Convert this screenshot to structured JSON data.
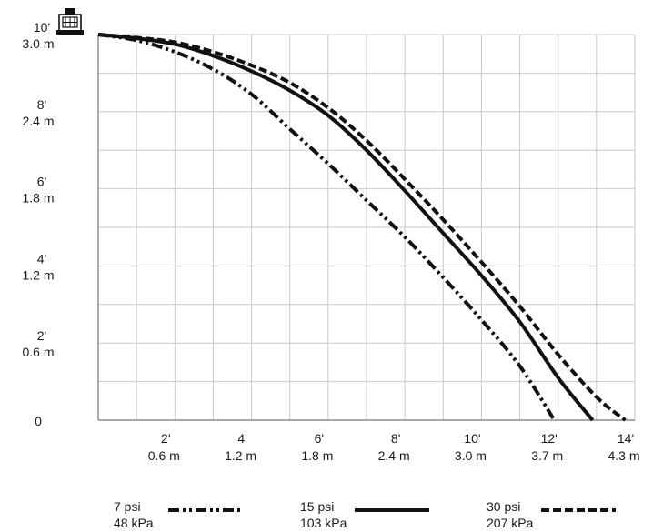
{
  "chart_data": {
    "type": "line",
    "xlim": [
      0,
      14
    ],
    "ylim": [
      0,
      10
    ],
    "grid": true,
    "x_ticks": [
      {
        "value": 2,
        "ft": "2'",
        "m": "0.6 m"
      },
      {
        "value": 4,
        "ft": "4'",
        "m": "1.2 m"
      },
      {
        "value": 6,
        "ft": "6'",
        "m": "1.8 m"
      },
      {
        "value": 8,
        "ft": "8'",
        "m": "2.4 m"
      },
      {
        "value": 10,
        "ft": "10'",
        "m": "3.0 m"
      },
      {
        "value": 12,
        "ft": "12'",
        "m": "3.7 m"
      },
      {
        "value": 14,
        "ft": "14'",
        "m": "4.3 m"
      }
    ],
    "y_ticks": [
      {
        "value": 10,
        "ft": "10'",
        "m": "3.0 m"
      },
      {
        "value": 8,
        "ft": "8'",
        "m": "2.4 m"
      },
      {
        "value": 6,
        "ft": "6'",
        "m": "1.8 m"
      },
      {
        "value": 4,
        "ft": "4'",
        "m": "1.2 m"
      },
      {
        "value": 2,
        "ft": "2'",
        "m": "0.6 m"
      },
      {
        "value": 0,
        "ft": "0",
        "m": ""
      }
    ],
    "series": [
      {
        "name": "7 psi 48 kPa",
        "psi": "7 psi",
        "kpa": "48 kPa",
        "style": "dash-dot-dot",
        "color": "#111111",
        "x": [
          0,
          1,
          2,
          3,
          4,
          5,
          6,
          7,
          8,
          9,
          10,
          11,
          11.9
        ],
        "y": [
          10,
          9.85,
          9.55,
          9.1,
          8.45,
          7.55,
          6.65,
          5.7,
          4.75,
          3.7,
          2.6,
          1.4,
          0
        ]
      },
      {
        "name": "15 psi 103 kPa",
        "psi": "15 psi",
        "kpa": "103 kPa",
        "style": "solid",
        "color": "#111111",
        "x": [
          0,
          1,
          2,
          3,
          4,
          5,
          6,
          7,
          8,
          9,
          10,
          11,
          12,
          12.9
        ],
        "y": [
          10,
          9.9,
          9.75,
          9.45,
          9.05,
          8.55,
          7.9,
          7.0,
          5.95,
          4.85,
          3.75,
          2.55,
          1.1,
          0
        ]
      },
      {
        "name": "30 psi 207 kPa",
        "psi": "30 psi",
        "kpa": "207 kPa",
        "style": "dashed",
        "color": "#111111",
        "x": [
          0,
          1,
          2,
          3,
          4,
          5,
          6,
          7,
          8,
          9,
          10,
          11,
          12,
          13,
          13.75
        ],
        "y": [
          10,
          9.92,
          9.8,
          9.55,
          9.2,
          8.75,
          8.1,
          7.25,
          6.25,
          5.2,
          4.1,
          2.95,
          1.7,
          0.6,
          0
        ]
      }
    ]
  },
  "icons": {
    "nozzle": "sprinkler-nozzle-icon"
  }
}
